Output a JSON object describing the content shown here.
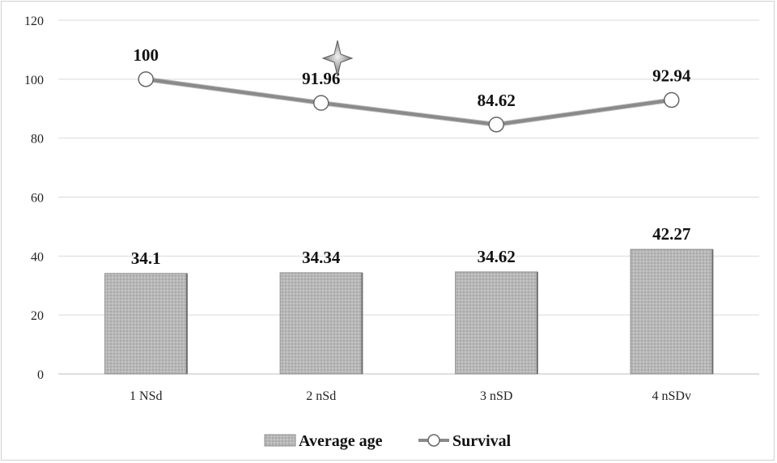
{
  "chart_data": {
    "type": "bar",
    "categories": [
      "1 NSd",
      "2 nSd",
      "3 nSD",
      "4 nSDv"
    ],
    "series": [
      {
        "name": "Average age",
        "type": "bar",
        "values": [
          34.1,
          34.34,
          34.62,
          42.27
        ],
        "labels": [
          "34.1",
          "34.34",
          "34.62",
          "42.27"
        ],
        "color": "#b5b5b5"
      },
      {
        "name": "Survival",
        "type": "line",
        "values": [
          100,
          91.96,
          84.62,
          92.94
        ],
        "labels": [
          "100",
          "91.96",
          "84.62",
          "92.94"
        ],
        "color": "#8a8a8a"
      }
    ],
    "y_ticks": [
      "0",
      "20",
      "40",
      "60",
      "80",
      "100",
      "120"
    ],
    "ylim": [
      0,
      120
    ],
    "grid": true,
    "legend_position": "bottom"
  }
}
